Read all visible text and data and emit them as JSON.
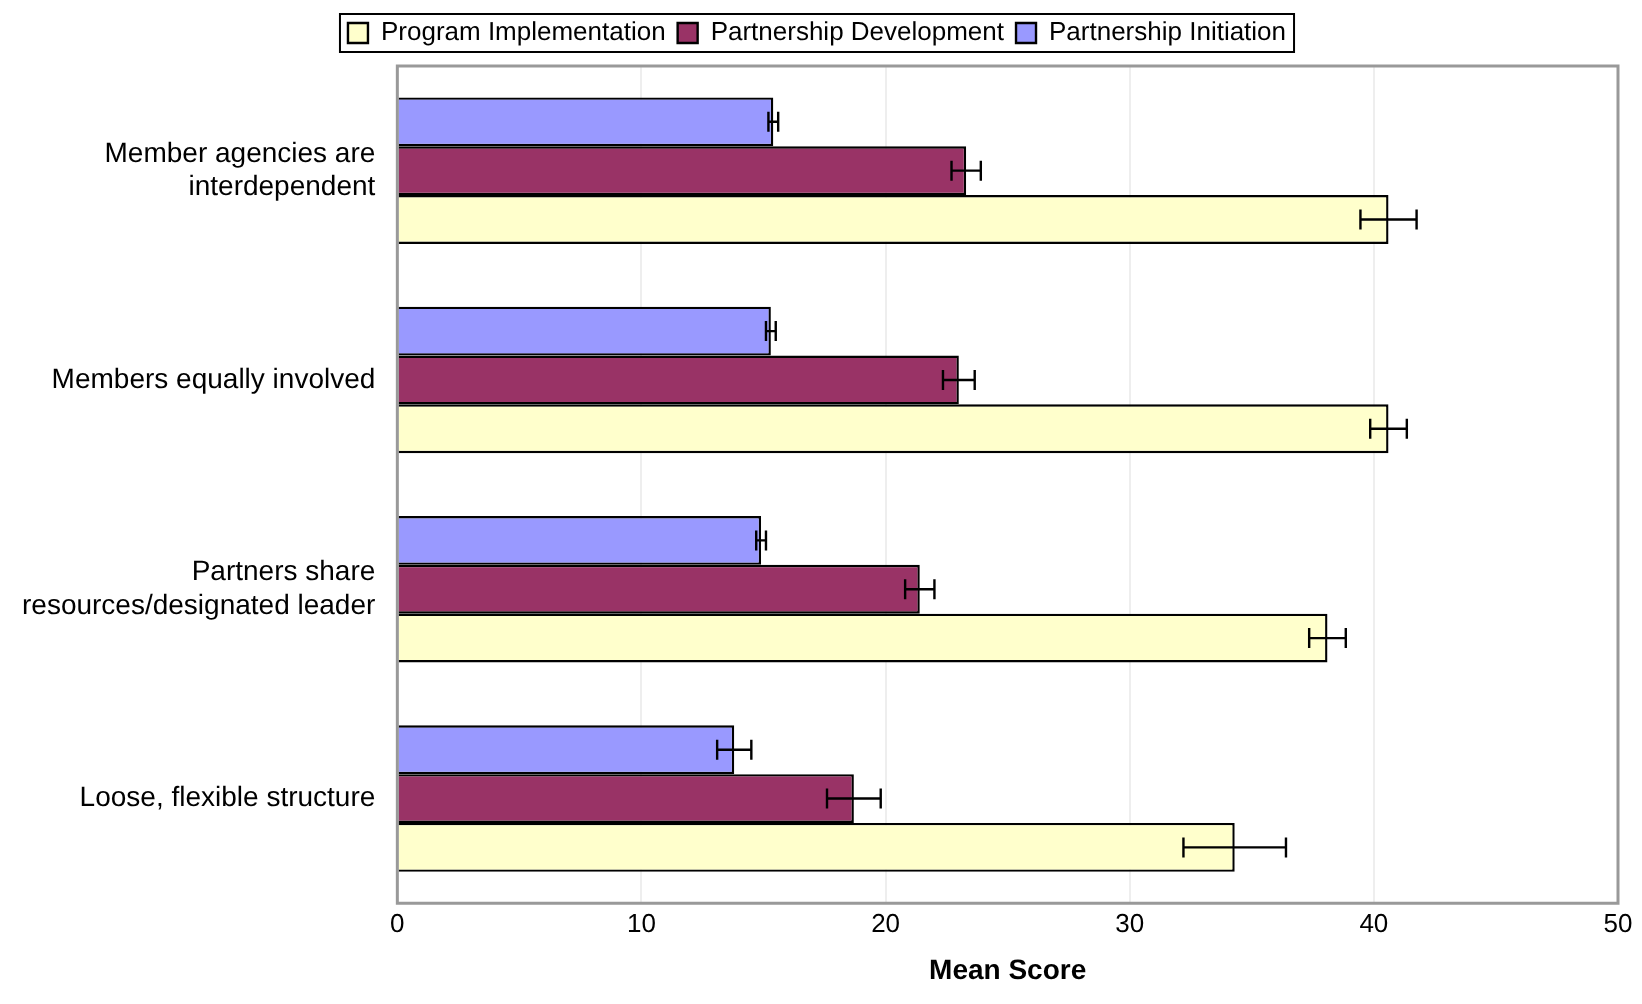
{
  "chart_data": {
    "type": "bar",
    "orientation": "horizontal",
    "xlabel": "Mean Score",
    "categories": [
      "Member agencies are interdependent",
      "Members equally involved",
      "Partners share resources/designated leader",
      "Loose, flexible structure"
    ],
    "series": [
      {
        "name": "Program Implementation",
        "color": "#ffffcc",
        "values": [
          40.6,
          40.6,
          38.1,
          34.3
        ],
        "errors": [
          1.15,
          0.75,
          0.75,
          2.1
        ]
      },
      {
        "name": "Partnership Development",
        "color": "#993366",
        "values": [
          23.3,
          23.0,
          21.4,
          18.7
        ],
        "errors": [
          0.6,
          0.65,
          0.6,
          1.1
        ]
      },
      {
        "name": "Partnership Initiation",
        "color": "#9999ff",
        "values": [
          15.4,
          15.3,
          14.9,
          13.8
        ],
        "errors": [
          0.2,
          0.2,
          0.2,
          0.7
        ]
      }
    ],
    "xlim": [
      0,
      50
    ],
    "xticks": [
      0,
      10,
      20,
      30,
      40,
      50
    ],
    "grid": "x",
    "legend": "top"
  }
}
